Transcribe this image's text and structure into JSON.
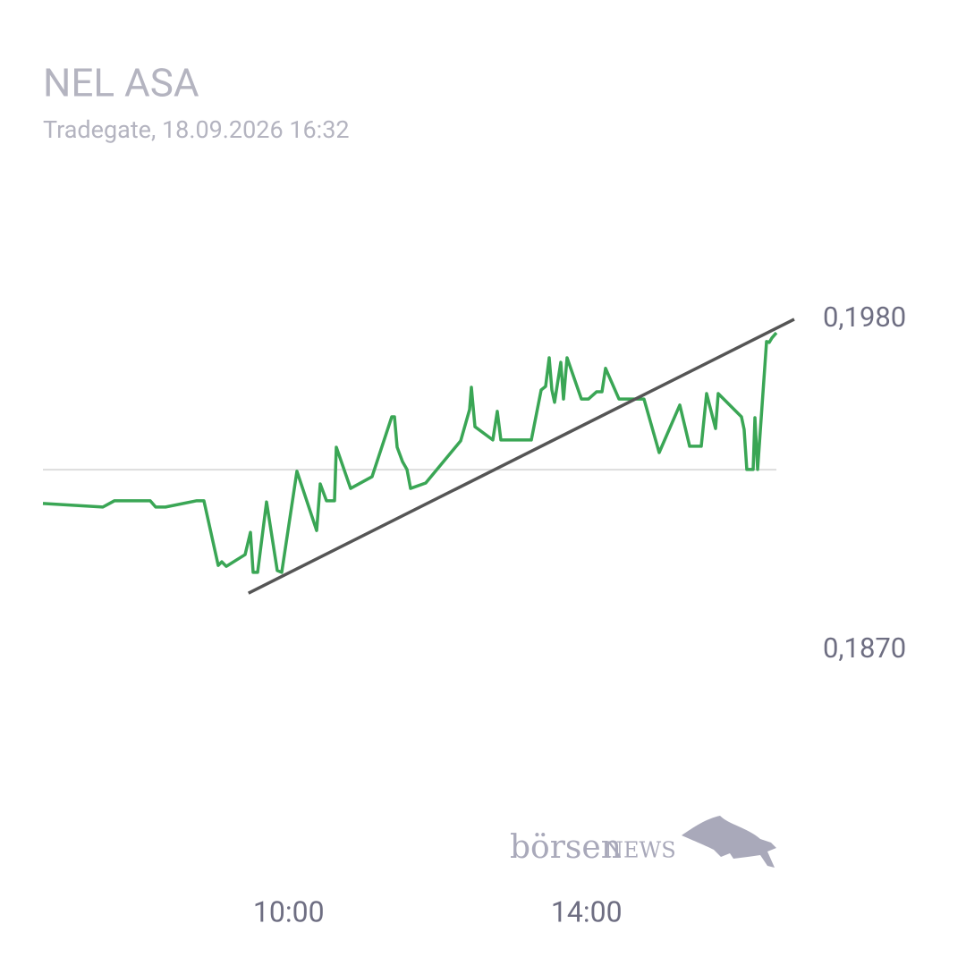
{
  "chart_data": {
    "type": "line",
    "title": "NEL ASA",
    "subtitle": "Tradegate, 18.09.2026 16:32",
    "x": [
      6.7,
      7.505,
      7.661,
      8.141,
      8.214,
      8.346,
      8.766,
      8.862,
      9.054,
      9.102,
      9.162,
      9.415,
      9.487,
      9.523,
      9.583,
      9.703,
      9.847,
      9.907,
      10.111,
      10.376,
      10.424,
      10.508,
      10.616,
      10.64,
      10.832,
      11.12,
      11.385,
      11.421,
      11.457,
      11.529,
      11.589,
      11.637,
      11.841,
      12.31,
      12.43,
      12.454,
      12.502,
      12.742,
      12.802,
      12.85,
      13.259,
      13.391,
      13.451,
      13.499,
      13.535,
      13.571,
      13.655,
      13.691,
      13.739,
      13.931,
      14.027,
      14.135,
      14.208,
      14.256,
      14.436,
      14.772,
      14.976,
      15.253,
      15.385,
      15.541,
      15.613,
      15.733,
      15.769,
      16.081,
      16.117,
      16.153,
      16.238,
      16.262,
      16.298,
      16.418,
      16.454,
      16.49,
      16.55
    ],
    "series": [
      {
        "name": "NEL ASA",
        "color": "#3aa655",
        "values": [
          0.19188,
          0.19176,
          0.19197,
          0.19197,
          0.19176,
          0.19176,
          0.19197,
          0.19197,
          0.18982,
          0.18994,
          0.18979,
          0.19018,
          0.19092,
          0.18959,
          0.18959,
          0.19193,
          0.18965,
          0.18959,
          0.19295,
          0.19098,
          0.19253,
          0.19197,
          0.19197,
          0.19375,
          0.19238,
          0.19277,
          0.19476,
          0.19476,
          0.19375,
          0.19327,
          0.19301,
          0.19238,
          0.19256,
          0.19396,
          0.195,
          0.19574,
          0.19443,
          0.19399,
          0.19494,
          0.19399,
          0.19399,
          0.19565,
          0.19577,
          0.19672,
          0.19565,
          0.19524,
          0.19657,
          0.19535,
          0.19672,
          0.19535,
          0.19535,
          0.19559,
          0.19559,
          0.19637,
          0.19535,
          0.19535,
          0.19357,
          0.19515,
          0.19378,
          0.19378,
          0.19553,
          0.19437,
          0.19553,
          0.19476,
          0.19434,
          0.19301,
          0.19301,
          0.19473,
          0.19301,
          0.19726,
          0.19723,
          0.19738,
          0.19755
        ]
      }
    ],
    "trendline": {
      "color": "#555555",
      "x": [
        9.46,
        16.79
      ],
      "values": [
        0.1889,
        0.198
      ]
    },
    "reference_line": {
      "value": 0.193,
      "color": "#dddddd"
    },
    "xlim": [
      6.7,
      16.55
    ],
    "ylim": [
      0.184,
      0.201
    ],
    "xticks": [
      {
        "value": 10,
        "label": "10:00"
      },
      {
        "value": 14,
        "label": "14:00"
      }
    ],
    "yticks": [
      {
        "value": 0.198,
        "label": "0,1980"
      },
      {
        "value": 0.187,
        "label": "0,1870"
      }
    ],
    "grid": false,
    "logo": {
      "word": "börsen",
      "brand": "NEWS"
    }
  }
}
